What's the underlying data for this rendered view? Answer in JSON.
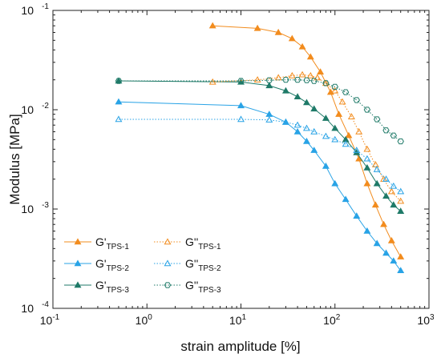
{
  "chart_data": {
    "type": "line",
    "xlabel": "strain amplitude [%]",
    "ylabel": "Modulus [MPa]",
    "xscale": "log",
    "yscale": "log",
    "xlim": [
      0.1,
      1000
    ],
    "ylim": [
      0.0001,
      0.1
    ],
    "grid": false,
    "legend_position": "bottom-left",
    "x_ticks": [
      {
        "value": 0.1,
        "base": "10",
        "exp": "-1"
      },
      {
        "value": 1,
        "base": "10",
        "exp": "0"
      },
      {
        "value": 10,
        "base": "10",
        "exp": "1"
      },
      {
        "value": 100,
        "base": "10",
        "exp": "2"
      },
      {
        "value": 1000,
        "base": "10",
        "exp": "3"
      }
    ],
    "y_ticks": [
      {
        "value": 0.0001,
        "base": "10",
        "exp": "-4"
      },
      {
        "value": 0.001,
        "base": "10",
        "exp": "-3"
      },
      {
        "value": 0.01,
        "base": "10",
        "exp": "-2"
      },
      {
        "value": 0.1,
        "base": "10",
        "exp": "-1"
      }
    ],
    "series": [
      {
        "name": "G'TPS-1",
        "name_main": "G'",
        "name_sub": "TPS-1",
        "color": "#f28c1e",
        "marker": "filled-triangle",
        "line": "solid",
        "x": [
          5,
          15,
          25,
          35,
          45,
          55,
          70,
          90,
          110,
          140,
          180,
          220,
          270,
          330,
          400,
          500
        ],
        "y": [
          0.07,
          0.066,
          0.06,
          0.052,
          0.043,
          0.034,
          0.024,
          0.015,
          0.009,
          0.0055,
          0.0032,
          0.0018,
          0.0011,
          0.0007,
          0.00048,
          0.00033
        ]
      },
      {
        "name": "G'TPS-2",
        "name_main": "G'",
        "name_sub": "TPS-2",
        "color": "#29a3e6",
        "marker": "filled-triangle",
        "line": "solid",
        "x": [
          0.5,
          10,
          20,
          30,
          40,
          50,
          60,
          80,
          100,
          130,
          170,
          220,
          280,
          350,
          420,
          500
        ],
        "y": [
          0.012,
          0.011,
          0.009,
          0.0075,
          0.006,
          0.0048,
          0.0039,
          0.0027,
          0.0018,
          0.00125,
          0.00085,
          0.0006,
          0.00045,
          0.00036,
          0.0003,
          0.00024
        ]
      },
      {
        "name": "G'TPS-3",
        "name_main": "G'",
        "name_sub": "TPS-3",
        "color": "#1f7a68",
        "marker": "filled-triangle",
        "line": "solid",
        "x": [
          0.5,
          10,
          20,
          30,
          40,
          50,
          60,
          80,
          100,
          130,
          170,
          220,
          280,
          350,
          420,
          500
        ],
        "y": [
          0.0195,
          0.019,
          0.0175,
          0.0155,
          0.0135,
          0.0118,
          0.0102,
          0.0082,
          0.0065,
          0.005,
          0.0037,
          0.0026,
          0.0018,
          0.00135,
          0.0011,
          0.00095
        ]
      },
      {
        "name": "G''TPS-1",
        "name_main": "G''",
        "name_sub": "TPS-1",
        "color": "#f28c1e",
        "marker": "open-triangle",
        "line": "dotted",
        "x": [
          5,
          15,
          25,
          35,
          45,
          55,
          65,
          80,
          100,
          120,
          150,
          180,
          220,
          270,
          330,
          400,
          500
        ],
        "y": [
          0.019,
          0.02,
          0.021,
          0.022,
          0.0225,
          0.022,
          0.021,
          0.0185,
          0.0155,
          0.012,
          0.0085,
          0.006,
          0.004,
          0.0028,
          0.002,
          0.0015,
          0.0012
        ]
      },
      {
        "name": "G''TPS-2",
        "name_main": "G''",
        "name_sub": "TPS-2",
        "color": "#29a3e6",
        "marker": "open-triangle",
        "line": "dotted",
        "x": [
          0.5,
          10,
          20,
          30,
          40,
          50,
          60,
          80,
          100,
          130,
          170,
          220,
          280,
          350,
          420,
          500
        ],
        "y": [
          0.008,
          0.008,
          0.0079,
          0.0075,
          0.007,
          0.0065,
          0.006,
          0.0054,
          0.005,
          0.0045,
          0.0039,
          0.0032,
          0.0025,
          0.002,
          0.0017,
          0.0015
        ]
      },
      {
        "name": "G''TPS-3",
        "name_main": "G''",
        "name_sub": "TPS-3",
        "color": "#1f7a68",
        "marker": "open-hexagon",
        "line": "dotted",
        "x": [
          0.5,
          10,
          20,
          30,
          40,
          50,
          60,
          80,
          100,
          130,
          170,
          220,
          280,
          350,
          420,
          500
        ],
        "y": [
          0.0195,
          0.0195,
          0.0198,
          0.02,
          0.02,
          0.0198,
          0.0195,
          0.0185,
          0.017,
          0.015,
          0.0125,
          0.01,
          0.008,
          0.0062,
          0.0055,
          0.0048
        ]
      }
    ]
  }
}
